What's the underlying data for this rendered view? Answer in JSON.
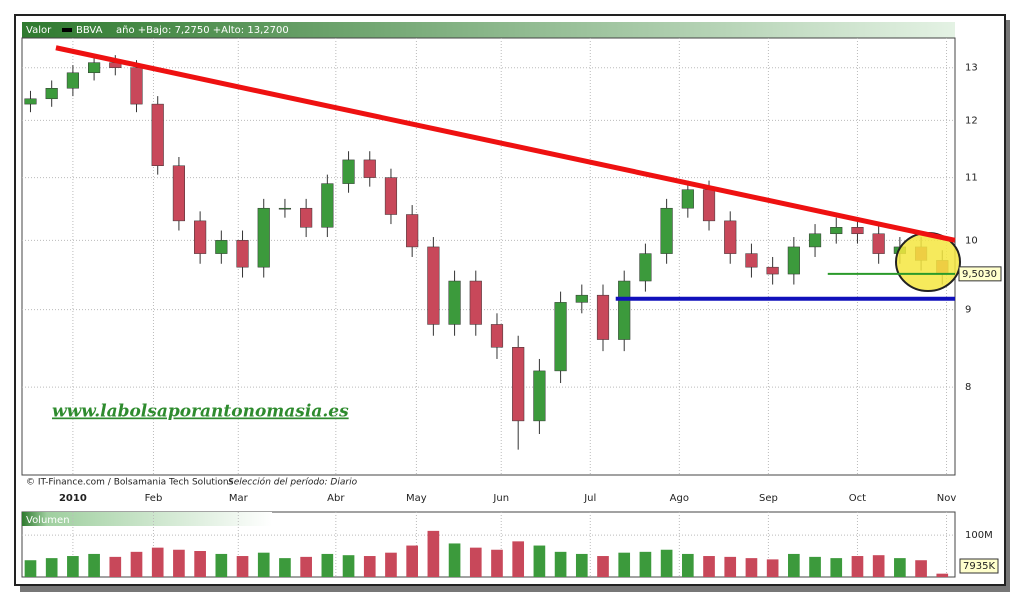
{
  "header": {
    "label": "Valor",
    "symbol": "BBVA",
    "range_text": "año +Bajo: 7,2750 +Alto: 13,2700"
  },
  "footer": {
    "credit": "© IT-Finance.com / Bolsamania Tech Solutions",
    "period": "Selección del período: Diario"
  },
  "watermark": "www.labolsaporantonomasia.es",
  "chart_data": {
    "type": "candlestick",
    "log_scale": true,
    "grid": true,
    "up_color": "#3c9a3c",
    "down_color": "#c8485a",
    "x": [
      -10,
      -5,
      0,
      5,
      10,
      15,
      20,
      25,
      30,
      35,
      40,
      45,
      50,
      55,
      60,
      65,
      70,
      75,
      80,
      85,
      90,
      95,
      100,
      105,
      110,
      115,
      120,
      125,
      130,
      135,
      140,
      145,
      150,
      155,
      160,
      165,
      170,
      175,
      180,
      185,
      190,
      195,
      200,
      205
    ],
    "open": [
      12.3,
      12.4,
      12.6,
      12.9,
      13.1,
      13.0,
      12.3,
      11.2,
      10.3,
      9.8,
      10.0,
      9.6,
      10.5,
      10.5,
      10.2,
      10.9,
      11.3,
      11.0,
      10.4,
      9.9,
      8.8,
      9.4,
      8.8,
      8.5,
      7.6,
      8.2,
      9.1,
      9.2,
      8.6,
      9.4,
      9.8,
      10.5,
      10.8,
      10.3,
      9.8,
      9.6,
      9.5,
      9.9,
      10.1,
      10.2,
      10.1,
      9.8,
      9.9,
      9.7
    ],
    "high": [
      12.55,
      12.75,
      13.05,
      13.27,
      13.25,
      13.15,
      12.45,
      11.35,
      10.45,
      10.15,
      10.15,
      10.65,
      10.65,
      10.65,
      11.05,
      11.45,
      11.45,
      11.15,
      10.55,
      10.05,
      9.55,
      9.55,
      8.95,
      8.65,
      8.35,
      9.25,
      9.35,
      9.35,
      9.55,
      9.95,
      10.65,
      10.95,
      10.95,
      10.45,
      9.95,
      9.75,
      10.05,
      10.25,
      10.35,
      10.35,
      10.25,
      10.05,
      10.05,
      9.85
    ],
    "low": [
      12.15,
      12.25,
      12.45,
      12.75,
      12.85,
      12.15,
      11.05,
      10.15,
      9.65,
      9.65,
      9.45,
      9.45,
      10.35,
      10.05,
      10.05,
      10.75,
      10.85,
      10.25,
      9.75,
      8.65,
      8.65,
      8.65,
      8.35,
      7.275,
      7.45,
      8.05,
      8.95,
      8.45,
      8.45,
      9.25,
      9.65,
      10.35,
      10.15,
      9.65,
      9.45,
      9.35,
      9.35,
      9.75,
      9.95,
      9.95,
      9.65,
      9.65,
      9.55,
      9.35
    ],
    "close": [
      12.4,
      12.6,
      12.9,
      13.1,
      13.0,
      12.3,
      11.2,
      10.3,
      9.8,
      10.0,
      9.6,
      10.5,
      10.5,
      10.2,
      10.9,
      11.3,
      11.0,
      10.4,
      9.9,
      8.8,
      9.4,
      8.8,
      8.5,
      7.6,
      8.2,
      9.1,
      9.2,
      8.6,
      9.4,
      9.8,
      10.5,
      10.8,
      10.3,
      9.8,
      9.6,
      9.5,
      9.9,
      10.1,
      10.2,
      10.1,
      9.8,
      9.9,
      9.7,
      9.5
    ],
    "xlim": [
      -12,
      208
    ],
    "xticks": [
      {
        "value": 0,
        "label": "2010"
      },
      {
        "value": 19,
        "label": "Feb"
      },
      {
        "value": 39,
        "label": "Mar"
      },
      {
        "value": 62,
        "label": "Abr"
      },
      {
        "value": 81,
        "label": "May"
      },
      {
        "value": 101,
        "label": "Jun"
      },
      {
        "value": 122,
        "label": "Jul"
      },
      {
        "value": 143,
        "label": "Ago"
      },
      {
        "value": 164,
        "label": "Sep"
      },
      {
        "value": 185,
        "label": "Oct"
      },
      {
        "value": 206,
        "label": "Nov"
      }
    ],
    "ylim": [
      7.0,
      13.6
    ],
    "yticks": [
      8,
      9,
      10,
      11,
      12,
      13
    ],
    "last_price": {
      "value": 9.503,
      "label": "9,5030"
    },
    "trendlines": [
      {
        "color": "#ee1111",
        "x": [
          -4,
          208
        ],
        "y": [
          13.4,
          10.0
        ]
      },
      {
        "color": "#2a9a2a",
        "x": [
          178,
          208
        ],
        "y": [
          9.503,
          9.503
        ]
      },
      {
        "color": "#1010bb",
        "x": [
          128,
          208
        ],
        "y": [
          9.15,
          9.15
        ]
      }
    ],
    "volume": {
      "label": "Volumen",
      "ylim": [
        0,
        155
      ],
      "yticks": [
        {
          "value": 100,
          "label": "100M"
        }
      ],
      "values": [
        40,
        45,
        50,
        55,
        48,
        60,
        70,
        65,
        62,
        55,
        50,
        58,
        45,
        48,
        55,
        52,
        50,
        58,
        75,
        110,
        80,
        70,
        65,
        85,
        75,
        60,
        55,
        50,
        58,
        60,
        65,
        55,
        50,
        48,
        45,
        42,
        55,
        48,
        45,
        50,
        52,
        45,
        40,
        7.935
      ],
      "value_labels": [
        null,
        null,
        null,
        null,
        null,
        null,
        null,
        null,
        null,
        null,
        null,
        null,
        null,
        null,
        null,
        null,
        null,
        null,
        null,
        null,
        null,
        null,
        null,
        null,
        null,
        null,
        null,
        null,
        null,
        null,
        null,
        null,
        null,
        null,
        null,
        null,
        null,
        null,
        null,
        null,
        null,
        null,
        null,
        "7935K"
      ]
    }
  }
}
